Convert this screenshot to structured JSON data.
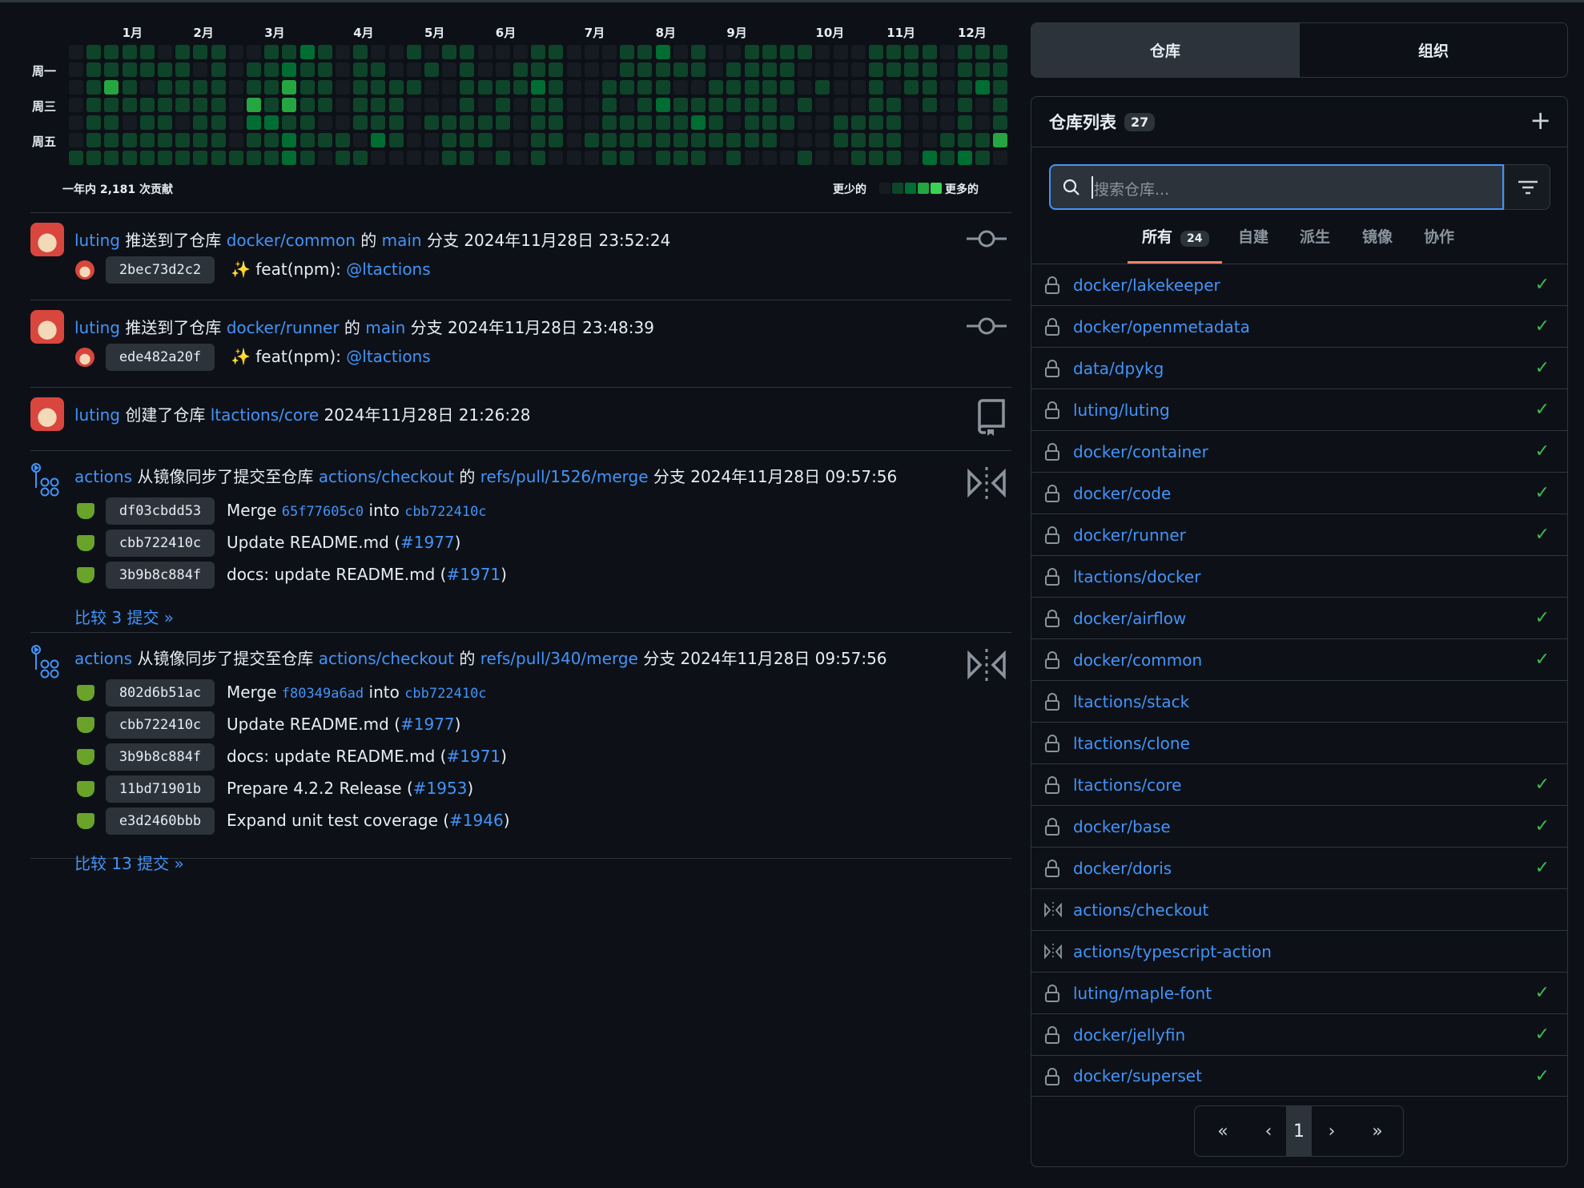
{
  "contributions": {
    "months": [
      "1月",
      "2月",
      "3月",
      "4月",
      "5月",
      "6月",
      "7月",
      "8月",
      "9月",
      "10月",
      "11月",
      "12月"
    ],
    "month_week": [
      3,
      7,
      11,
      16,
      20,
      24,
      29,
      33,
      37,
      42,
      46,
      50
    ],
    "days": [
      "周一",
      "周三",
      "周五"
    ],
    "summary": "一年内 2,181 次贡献",
    "less": "更少的",
    "more": "更多的",
    "colors": [
      "#161b22",
      "#0e4429",
      "#006d32",
      "#26a641",
      "#39d353"
    ],
    "levels": [
      "01111011100112101001011000110001120100111100011110111",
      "01111110101121101100101001110001111101111000011110111",
      "01310111101131101111001111210011110011111010010110121",
      "01111111103131101110001010110010121111110100011010101",
      "01101101102211001110111110110011111210111001111000101",
      "01111111101121110210011100110111111111110001111001113",
      "11111111111121011000011010100011011101000100111021210"
    ]
  },
  "feed": [
    {
      "actor": "luting",
      "kind": "user",
      "title": [
        [
          "luting",
          1
        ],
        [
          " 推送到了仓库 ",
          0
        ],
        [
          "docker/common",
          1
        ],
        [
          " 的 ",
          0
        ],
        [
          "main",
          1
        ],
        [
          " 分支 2024年11月28日 23:52:24",
          0
        ]
      ],
      "icon": "commit-icon",
      "commits": [
        {
          "sha": "2bec73d2c2",
          "msg": [
            [
              "✨ feat(npm): ",
              0
            ],
            [
              "@ltactions",
              1
            ]
          ]
        }
      ]
    },
    {
      "actor": "luting",
      "kind": "user",
      "title": [
        [
          "luting",
          1
        ],
        [
          " 推送到了仓库 ",
          0
        ],
        [
          "docker/runner",
          1
        ],
        [
          " 的 ",
          0
        ],
        [
          "main",
          1
        ],
        [
          " 分支 2024年11月28日 23:48:39",
          0
        ]
      ],
      "icon": "commit-icon",
      "commits": [
        {
          "sha": "ede482a20f",
          "msg": [
            [
              "✨ feat(npm): ",
              0
            ],
            [
              "@ltactions",
              1
            ]
          ]
        }
      ]
    },
    {
      "actor": "luting",
      "kind": "user",
      "title": [
        [
          "luting",
          1
        ],
        [
          " 创建了仓库 ",
          0
        ],
        [
          "ltactions/core",
          1
        ],
        [
          " 2024年11月28日 21:26:28",
          0
        ]
      ],
      "icon": "repo-icon",
      "commits": []
    },
    {
      "actor": "actions",
      "kind": "bot",
      "title": [
        [
          "actions",
          1
        ],
        [
          " 从镜像同步了提交至仓库 ",
          0
        ],
        [
          "actions/checkout",
          1
        ],
        [
          " 的 ",
          0
        ],
        [
          "refs/pull/1526/merge",
          1
        ],
        [
          " 分支 2024年11月28日 09:57:56",
          0
        ]
      ],
      "icon": "mirror-icon",
      "commits": [
        {
          "sha": "df03cbdd53",
          "msg": [
            [
              "Merge ",
              0
            ],
            [
              "65f77605c0",
              2
            ],
            [
              " into ",
              0
            ],
            [
              "cbb722410c",
              2
            ]
          ]
        },
        {
          "sha": "cbb722410c",
          "msg": [
            [
              "Update README.md (",
              0
            ],
            [
              "#1977",
              1
            ],
            [
              ")",
              0
            ]
          ]
        },
        {
          "sha": "3b9b8c884f",
          "msg": [
            [
              "docs: update README.md (",
              0
            ],
            [
              "#1971",
              1
            ],
            [
              ")",
              0
            ]
          ]
        }
      ],
      "compare": "比较 3 提交 »"
    },
    {
      "actor": "actions",
      "kind": "bot",
      "title": [
        [
          "actions",
          1
        ],
        [
          " 从镜像同步了提交至仓库 ",
          0
        ],
        [
          "actions/checkout",
          1
        ],
        [
          " 的 ",
          0
        ],
        [
          "refs/pull/340/merge",
          1
        ],
        [
          " 分支 2024年11月28日 09:57:56",
          0
        ]
      ],
      "icon": "mirror-icon",
      "commits": [
        {
          "sha": "802d6b51ac",
          "msg": [
            [
              "Merge ",
              0
            ],
            [
              "f80349a6ad",
              2
            ],
            [
              " into ",
              0
            ],
            [
              "cbb722410c",
              2
            ]
          ]
        },
        {
          "sha": "cbb722410c",
          "msg": [
            [
              "Update README.md (",
              0
            ],
            [
              "#1977",
              1
            ],
            [
              ")",
              0
            ]
          ]
        },
        {
          "sha": "3b9b8c884f",
          "msg": [
            [
              "docs: update README.md (",
              0
            ],
            [
              "#1971",
              1
            ],
            [
              ")",
              0
            ]
          ]
        },
        {
          "sha": "11bd71901b",
          "msg": [
            [
              "Prepare 4.2.2 Release (",
              0
            ],
            [
              "#1953",
              1
            ],
            [
              ")",
              0
            ]
          ]
        },
        {
          "sha": "e3d2460bbb",
          "msg": [
            [
              "Expand unit test coverage (",
              0
            ],
            [
              "#1946",
              1
            ],
            [
              ")",
              0
            ]
          ]
        }
      ],
      "compare": "比较 13 提交 »"
    }
  ],
  "sidebar": {
    "seg": [
      "仓库",
      "组织"
    ],
    "list_title": "仓库列表",
    "list_count": "27",
    "search_placeholder": "搜索仓库...",
    "tabs": [
      {
        "label": "所有",
        "count": "24"
      },
      {
        "label": "自建"
      },
      {
        "label": "派生"
      },
      {
        "label": "镜像"
      },
      {
        "label": "协作"
      }
    ],
    "repos": [
      {
        "name": "docker/lakekeeper",
        "type": "private",
        "ok": true
      },
      {
        "name": "docker/openmetadata",
        "type": "private",
        "ok": true
      },
      {
        "name": "data/dpykg",
        "type": "private",
        "ok": true
      },
      {
        "name": "luting/luting",
        "type": "private",
        "ok": true
      },
      {
        "name": "docker/container",
        "type": "private",
        "ok": true
      },
      {
        "name": "docker/code",
        "type": "private",
        "ok": true
      },
      {
        "name": "docker/runner",
        "type": "private",
        "ok": true
      },
      {
        "name": "ltactions/docker",
        "type": "private",
        "ok": false
      },
      {
        "name": "docker/airflow",
        "type": "private",
        "ok": true
      },
      {
        "name": "docker/common",
        "type": "private",
        "ok": true
      },
      {
        "name": "ltactions/stack",
        "type": "private",
        "ok": false
      },
      {
        "name": "ltactions/clone",
        "type": "private",
        "ok": false
      },
      {
        "name": "ltactions/core",
        "type": "private",
        "ok": true
      },
      {
        "name": "docker/base",
        "type": "private",
        "ok": true
      },
      {
        "name": "docker/doris",
        "type": "private",
        "ok": true
      },
      {
        "name": "actions/checkout",
        "type": "mirror",
        "ok": false
      },
      {
        "name": "actions/typescript-action",
        "type": "mirror",
        "ok": false
      },
      {
        "name": "luting/maple-font",
        "type": "private",
        "ok": true
      },
      {
        "name": "docker/jellyfin",
        "type": "private",
        "ok": true
      },
      {
        "name": "docker/superset",
        "type": "private",
        "ok": true
      }
    ],
    "pagination": {
      "first": "«",
      "prev": "‹",
      "current": "1",
      "next": "›",
      "last": "»"
    }
  }
}
